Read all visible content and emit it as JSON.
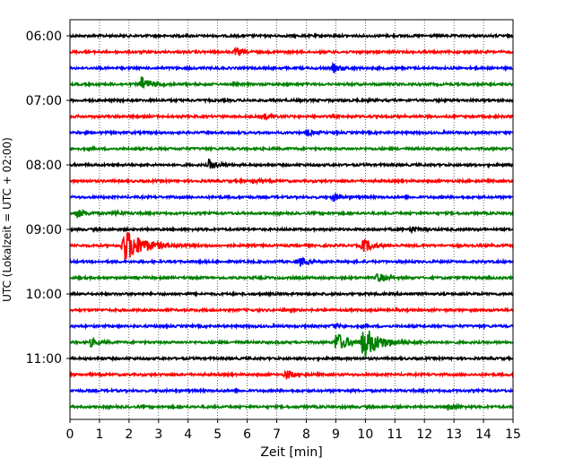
{
  "chart_data": {
    "type": "line",
    "title": "",
    "xlabel": "Zeit  [min]",
    "ylabel": "UTC (Lokalzeit = UTC + 02:00)",
    "xlim": [
      0,
      15
    ],
    "x_ticks": [
      0,
      1,
      2,
      3,
      4,
      5,
      6,
      7,
      8,
      9,
      10,
      11,
      12,
      13,
      14,
      15
    ],
    "y_ticks": [
      "06:00",
      "07:00",
      "08:00",
      "09:00",
      "10:00",
      "11:00"
    ],
    "grid": "vertical dotted",
    "trace_colors": [
      "#000000",
      "#ff0000",
      "#0000ff",
      "#008000"
    ],
    "series": [
      {
        "start": "06:00",
        "color": "#000000",
        "events": []
      },
      {
        "start": "06:15",
        "color": "#ff0000",
        "events": [
          {
            "t": 5.6,
            "amp": 0.5
          }
        ]
      },
      {
        "start": "06:30",
        "color": "#0000ff",
        "events": [
          {
            "t": 8.9,
            "amp": 0.5
          }
        ]
      },
      {
        "start": "06:45",
        "color": "#008000",
        "events": [
          {
            "t": 2.4,
            "amp": 0.9
          }
        ]
      },
      {
        "start": "07:00",
        "color": "#000000",
        "events": []
      },
      {
        "start": "07:15",
        "color": "#ff0000",
        "events": [
          {
            "t": 6.6,
            "amp": 0.3
          }
        ]
      },
      {
        "start": "07:30",
        "color": "#0000ff",
        "events": [
          {
            "t": 8.0,
            "amp": 0.4
          }
        ]
      },
      {
        "start": "07:45",
        "color": "#008000",
        "events": []
      },
      {
        "start": "08:00",
        "color": "#000000",
        "events": [
          {
            "t": 4.7,
            "amp": 0.6
          }
        ]
      },
      {
        "start": "08:15",
        "color": "#ff0000",
        "events": [
          {
            "t": 6.2,
            "amp": 0.3
          }
        ]
      },
      {
        "start": "08:30",
        "color": "#0000ff",
        "events": [
          {
            "t": 8.9,
            "amp": 0.5
          }
        ]
      },
      {
        "start": "08:45",
        "color": "#008000",
        "events": [
          {
            "t": 0.2,
            "amp": 0.6
          },
          {
            "t": 1.5,
            "amp": 0.3
          }
        ]
      },
      {
        "start": "09:00",
        "color": "#000000",
        "events": [
          {
            "t": 11.5,
            "amp": 0.4
          }
        ]
      },
      {
        "start": "09:15",
        "color": "#ff0000",
        "events": [
          {
            "t": 1.8,
            "amp": 2.3
          },
          {
            "t": 9.9,
            "amp": 0.9
          }
        ]
      },
      {
        "start": "09:30",
        "color": "#0000ff",
        "events": [
          {
            "t": 7.8,
            "amp": 0.5
          }
        ]
      },
      {
        "start": "09:45",
        "color": "#008000",
        "events": [
          {
            "t": 10.4,
            "amp": 0.6
          }
        ]
      },
      {
        "start": "10:00",
        "color": "#000000",
        "events": []
      },
      {
        "start": "10:15",
        "color": "#ff0000",
        "events": []
      },
      {
        "start": "10:30",
        "color": "#0000ff",
        "events": [
          {
            "t": 8.9,
            "amp": 0.4
          }
        ]
      },
      {
        "start": "10:45",
        "color": "#008000",
        "events": [
          {
            "t": 0.7,
            "amp": 0.5
          },
          {
            "t": 9.0,
            "amp": 1.3
          },
          {
            "t": 9.9,
            "amp": 2.0
          }
        ]
      },
      {
        "start": "11:00",
        "color": "#000000",
        "events": []
      },
      {
        "start": "11:15",
        "color": "#ff0000",
        "events": [
          {
            "t": 7.3,
            "amp": 0.6
          }
        ]
      },
      {
        "start": "11:30",
        "color": "#0000ff",
        "events": []
      },
      {
        "start": "11:45",
        "color": "#008000",
        "events": [
          {
            "t": 12.8,
            "amp": 0.5
          }
        ]
      }
    ]
  }
}
